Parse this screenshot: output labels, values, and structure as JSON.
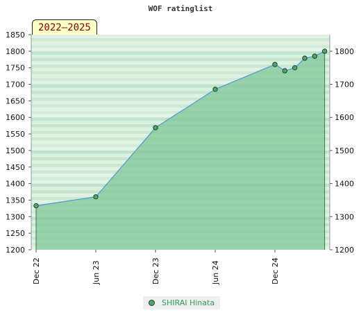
{
  "title": "WOF ratinglist",
  "period_badge": "2022–2025",
  "legend": {
    "label": "SHIRAI Hinata"
  },
  "colors": {
    "area_fill": "#7fc797",
    "line": "#5b9bd5",
    "marker_fill": "#4fa86b",
    "marker_stroke": "#1f3f28",
    "band_light": "#eef8f0",
    "band_dark": "#b5dfc0"
  },
  "chart_data": {
    "type": "area",
    "title": "WOF ratinglist",
    "xlabel": "",
    "ylabel": "",
    "ylim": [
      1200,
      1850
    ],
    "y_ticks_left": [
      1200,
      1250,
      1300,
      1350,
      1400,
      1450,
      1500,
      1550,
      1600,
      1650,
      1700,
      1750,
      1800,
      1850
    ],
    "y_ticks_right": [
      1200,
      1300,
      1400,
      1500,
      1600,
      1700,
      1800
    ],
    "x_ticks": [
      "Dec 22",
      "Jun 23",
      "Dec 23",
      "Jun 24",
      "Dec 24"
    ],
    "grid": true,
    "legend_position": "bottom",
    "series": [
      {
        "name": "SHIRAI Hinata",
        "x": [
          "2022-12",
          "2023-06",
          "2023-12",
          "2024-06",
          "2024-12",
          "2025-01",
          "2025-02",
          "2025-03",
          "2025-04",
          "2025-05"
        ],
        "values": [
          1333,
          1360,
          1569,
          1685,
          1760,
          1741,
          1750,
          1779,
          1785,
          1800
        ]
      }
    ]
  }
}
